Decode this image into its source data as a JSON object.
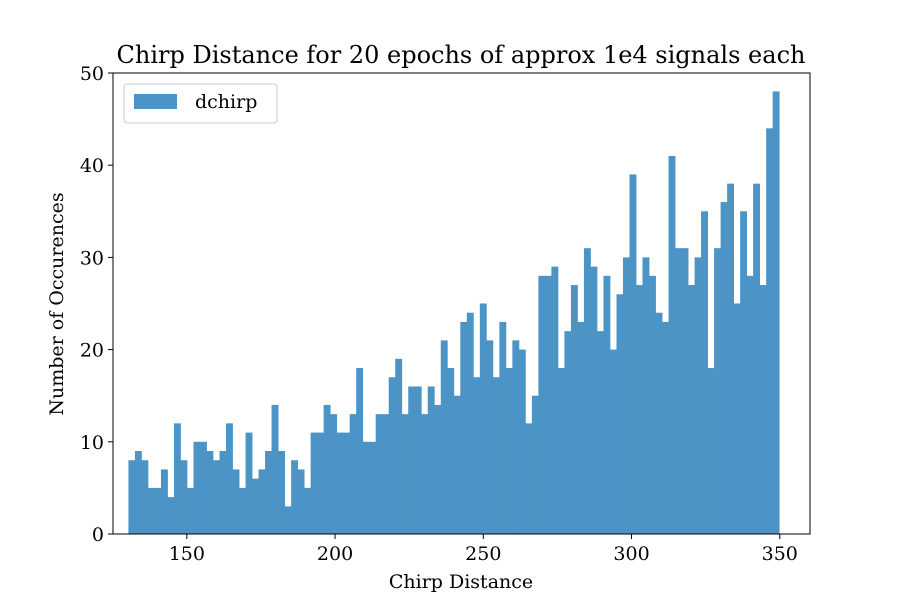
{
  "chart_data": {
    "type": "bar",
    "title": "Chirp Distance for 20 epochs of approx 1e4 signals each",
    "xlabel": "Chirp Distance",
    "ylabel": "Number of Occurences",
    "xlim": [
      125.1,
      360.2
    ],
    "ylim": [
      0,
      50
    ],
    "xticks": [
      150,
      200,
      250,
      300,
      350
    ],
    "yticks": [
      0,
      10,
      20,
      30,
      40,
      50
    ],
    "bin_start": 130.3,
    "bin_width": 2.195,
    "grid": false,
    "legend_position": "upper left",
    "bar_color": "#4c93c6",
    "series": [
      {
        "name": "dchirp",
        "values": [
          8,
          9,
          8,
          5,
          5,
          7,
          4,
          12,
          8,
          5,
          10,
          10,
          9,
          8,
          9,
          12,
          7,
          5,
          11,
          6,
          7,
          9,
          14,
          9,
          3,
          8,
          7,
          5,
          11,
          11,
          14,
          13,
          11,
          11,
          13,
          18,
          10,
          10,
          13,
          13,
          17,
          19,
          13,
          16,
          16,
          13,
          16,
          14,
          21,
          18,
          15,
          23,
          24,
          17,
          25,
          21,
          17,
          23,
          18,
          21,
          20,
          12,
          15,
          28,
          28,
          29,
          18,
          22,
          27,
          23,
          31,
          29,
          22,
          28,
          20,
          26,
          30,
          39,
          27,
          30,
          28,
          24,
          23,
          41,
          31,
          31,
          27,
          30,
          35,
          18,
          31,
          36,
          38,
          25,
          35,
          28,
          38,
          27,
          44,
          48
        ]
      }
    ]
  }
}
